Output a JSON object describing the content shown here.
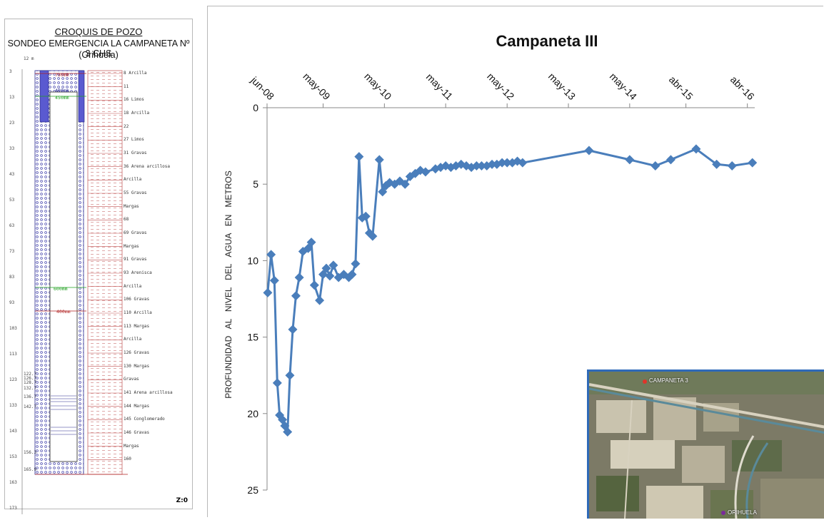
{
  "well_sketch": {
    "title": "CROQUIS DE POZO",
    "subtitle": "SONDEO EMERGENCIA LA CAMPANETA Nº 3 CHS",
    "location": "(Orihuela)",
    "id_label": "Z:0",
    "depth_ticks": [
      "3",
      "13",
      "23",
      "33",
      "43",
      "53",
      "63",
      "73",
      "83",
      "93",
      "103",
      "113",
      "123",
      "133",
      "143",
      "153",
      "163",
      "173"
    ],
    "depth_marks": [
      "12 m",
      "122.7",
      "126.7",
      "128.7",
      "132.7",
      "136.7",
      "142.7",
      "156.3",
      "165.9"
    ],
    "casing_labels": [
      "750mm",
      "450mm",
      "400mm",
      "600mm",
      "400mm"
    ],
    "lithology": [
      {
        "depth": "8",
        "label": "Arcilla"
      },
      {
        "depth": "11",
        "label": ""
      },
      {
        "depth": "16",
        "label": "Limos"
      },
      {
        "depth": "18",
        "label": "Arcilla"
      },
      {
        "depth": "22",
        "label": ""
      },
      {
        "depth": "27",
        "label": "Limos"
      },
      {
        "depth": "31",
        "label": "Gravas"
      },
      {
        "depth": "36",
        "label": "Arena arcillosa"
      },
      {
        "depth": "",
        "label": "Arcilla"
      },
      {
        "depth": "55",
        "label": "Gravas"
      },
      {
        "depth": "",
        "label": "Margas"
      },
      {
        "depth": "68",
        "label": ""
      },
      {
        "depth": "69",
        "label": "Gravas"
      },
      {
        "depth": "",
        "label": "Margas"
      },
      {
        "depth": "91",
        "label": "Gravas"
      },
      {
        "depth": "93",
        "label": "Arenisca"
      },
      {
        "depth": "",
        "label": "Arcilla"
      },
      {
        "depth": "106",
        "label": "Gravas"
      },
      {
        "depth": "110",
        "label": "Arcilla"
      },
      {
        "depth": "113",
        "label": "Margas"
      },
      {
        "depth": "",
        "label": "Arcilla"
      },
      {
        "depth": "126",
        "label": "Gravas"
      },
      {
        "depth": "130",
        "label": "Margas"
      },
      {
        "depth": "",
        "label": "Gravas"
      },
      {
        "depth": "141",
        "label": "Arena arcillosa"
      },
      {
        "depth": "144",
        "label": "Margas"
      },
      {
        "depth": "145",
        "label": "Conglomerado"
      },
      {
        "depth": "146",
        "label": "Gravas"
      },
      {
        "depth": "",
        "label": "Margas"
      },
      {
        "depth": "160",
        "label": ""
      }
    ]
  },
  "chart_data": {
    "type": "line",
    "title": "Campaneta III",
    "ylabel": "PROFUNDIDAD   AL   NIVEL   DEL   AGUA   EN   METROS",
    "xlabel": "",
    "x_ticks": [
      {
        "label": "jun-08",
        "date": "2008-06-01"
      },
      {
        "label": "may-09",
        "date": "2009-05-01"
      },
      {
        "label": "may-10",
        "date": "2010-05-01"
      },
      {
        "label": "may-11",
        "date": "2011-05-01"
      },
      {
        "label": "may-12",
        "date": "2012-05-01"
      },
      {
        "label": "may-13",
        "date": "2013-05-01"
      },
      {
        "label": "may-14",
        "date": "2014-05-01"
      },
      {
        "label": "abr-15",
        "date": "2015-04-01"
      },
      {
        "label": "abr-16",
        "date": "2016-04-01"
      }
    ],
    "xlim": [
      "2008-06-01",
      "2016-05-15"
    ],
    "ylim": [
      0,
      25
    ],
    "y_inverted": true,
    "y_ticks": [
      0,
      5,
      10,
      15,
      20,
      25
    ],
    "x_axis_position": "top",
    "grid": false,
    "color": "#4a7ebb",
    "marker": "diamond",
    "series": [
      {
        "name": "",
        "points": [
          [
            "2008-06-05",
            12.1
          ],
          [
            "2008-06-25",
            9.6
          ],
          [
            "2008-07-15",
            11.3
          ],
          [
            "2008-08-01",
            18.0
          ],
          [
            "2008-08-15",
            20.1
          ],
          [
            "2008-09-01",
            20.4
          ],
          [
            "2008-09-15",
            20.8
          ],
          [
            "2008-10-01",
            21.2
          ],
          [
            "2008-10-15",
            17.5
          ],
          [
            "2008-11-01",
            14.5
          ],
          [
            "2008-11-20",
            12.3
          ],
          [
            "2008-12-10",
            11.1
          ],
          [
            "2009-01-01",
            9.4
          ],
          [
            "2009-02-01",
            9.2
          ],
          [
            "2009-02-20",
            8.8
          ],
          [
            "2009-03-10",
            11.6
          ],
          [
            "2009-04-10",
            12.6
          ],
          [
            "2009-05-01",
            10.9
          ],
          [
            "2009-05-20",
            10.5
          ],
          [
            "2009-06-10",
            11.0
          ],
          [
            "2009-07-01",
            10.3
          ],
          [
            "2009-08-01",
            11.1
          ],
          [
            "2009-09-01",
            10.9
          ],
          [
            "2009-10-01",
            11.1
          ],
          [
            "2009-10-20",
            10.9
          ],
          [
            "2009-11-10",
            10.2
          ],
          [
            "2009-12-01",
            3.2
          ],
          [
            "2009-12-20",
            7.2
          ],
          [
            "2010-01-10",
            7.1
          ],
          [
            "2010-02-01",
            8.2
          ],
          [
            "2010-02-20",
            8.4
          ],
          [
            "2010-04-01",
            3.4
          ],
          [
            "2010-04-20",
            5.5
          ],
          [
            "2010-05-10",
            5.1
          ],
          [
            "2010-06-01",
            4.9
          ],
          [
            "2010-07-01",
            5.0
          ],
          [
            "2010-08-01",
            4.8
          ],
          [
            "2010-09-01",
            5.0
          ],
          [
            "2010-10-01",
            4.5
          ],
          [
            "2010-11-01",
            4.3
          ],
          [
            "2010-12-01",
            4.1
          ],
          [
            "2011-01-01",
            4.2
          ],
          [
            "2011-03-01",
            4.0
          ],
          [
            "2011-04-01",
            3.9
          ],
          [
            "2011-05-01",
            3.8
          ],
          [
            "2011-06-01",
            3.9
          ],
          [
            "2011-07-01",
            3.8
          ],
          [
            "2011-08-01",
            3.7
          ],
          [
            "2011-09-01",
            3.8
          ],
          [
            "2011-10-01",
            3.9
          ],
          [
            "2011-11-01",
            3.8
          ],
          [
            "2011-12-01",
            3.8
          ],
          [
            "2012-01-01",
            3.8
          ],
          [
            "2012-02-01",
            3.7
          ],
          [
            "2012-03-01",
            3.7
          ],
          [
            "2012-04-01",
            3.6
          ],
          [
            "2012-05-01",
            3.6
          ],
          [
            "2012-06-01",
            3.6
          ],
          [
            "2012-07-01",
            3.5
          ],
          [
            "2012-08-01",
            3.6
          ],
          [
            "2013-09-01",
            2.8
          ],
          [
            "2014-05-01",
            3.4
          ],
          [
            "2014-10-01",
            3.8
          ],
          [
            "2015-01-01",
            3.4
          ],
          [
            "2015-06-01",
            2.7
          ],
          [
            "2015-10-01",
            3.7
          ],
          [
            "2016-01-01",
            3.8
          ],
          [
            "2016-05-01",
            3.6
          ]
        ]
      }
    ]
  },
  "map_inset": {
    "labels": [
      "CAMPANETA 3",
      "ORIHUELA"
    ]
  }
}
